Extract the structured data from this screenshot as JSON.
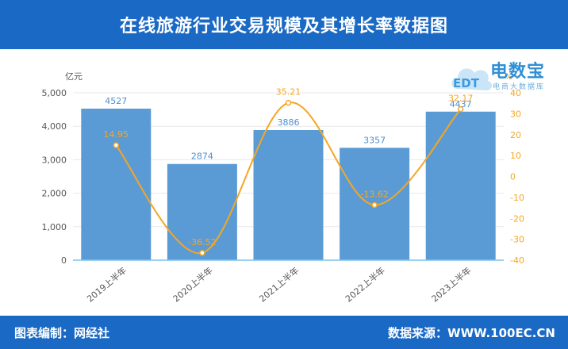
{
  "header": {
    "title": "在线旅游行业交易规模及其增长率数据图"
  },
  "footer": {
    "editor": "图表编制：网经社",
    "source": "数据来源：WWW.100EC.CN"
  },
  "logo": {
    "text": "电数宝",
    "subtitle": "电商大数据库",
    "badge": "EDT"
  },
  "colors": {
    "header": "#1a69c4",
    "bar": "#5b9bd5",
    "line": "#f5a623",
    "bar_label": "#4f8fd0",
    "line_label": "#f5a623"
  },
  "chart_data": {
    "type": "bar",
    "categories": [
      "2019上半年",
      "2020上半年",
      "2021上半年",
      "2022上半年",
      "2023上半年"
    ],
    "left_axis": {
      "unit": "亿元",
      "ylim": [
        0,
        5000
      ],
      "ticks": [
        0,
        1000,
        2000,
        3000,
        4000,
        5000
      ]
    },
    "right_axis": {
      "unit": "%",
      "ylim": [
        -40,
        40
      ],
      "ticks": [
        -40,
        -30,
        -20,
        -10,
        0,
        10,
        20,
        30,
        40
      ]
    },
    "series": [
      {
        "type": "bar",
        "axis": "left",
        "values": [
          4527,
          2874,
          3886,
          3357,
          4437
        ]
      },
      {
        "type": "line",
        "axis": "right",
        "smooth": true,
        "values": [
          14.95,
          -36.52,
          35.21,
          -13.62,
          32.17
        ]
      }
    ],
    "grid": true
  }
}
